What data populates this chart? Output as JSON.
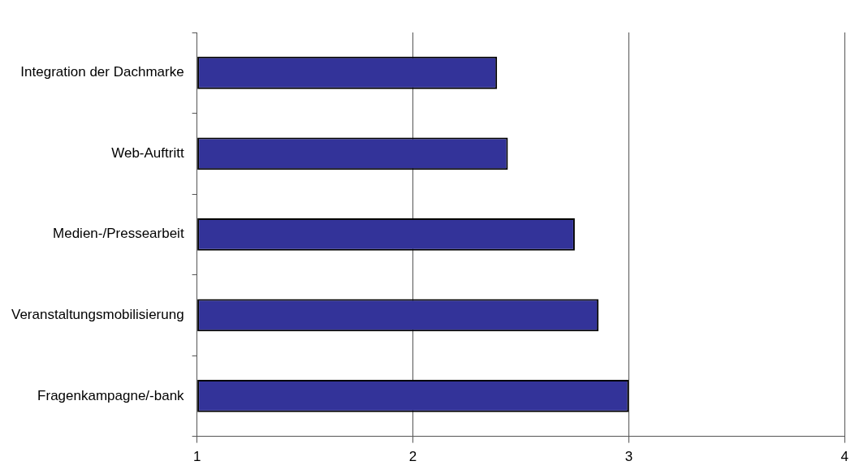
{
  "chart_data": {
    "type": "bar",
    "orientation": "horizontal",
    "categories": [
      "Integration der Dachmarke",
      "Web-Auftritt",
      "Medien-/Pressearbeit",
      "Veranstaltungsmobilisierung",
      "Fragenkampagne/-bank"
    ],
    "values": [
      2.39,
      2.44,
      2.75,
      2.86,
      3.0
    ],
    "color": "#333399",
    "xlim": [
      1,
      4
    ],
    "xticks": [
      1,
      2,
      3,
      4
    ],
    "grid": "x",
    "legend": false
  }
}
